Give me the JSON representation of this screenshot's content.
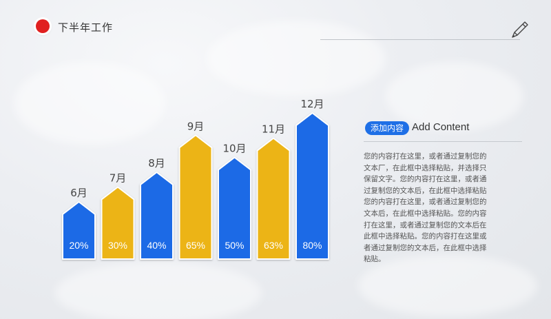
{
  "header": {
    "title": "下半年工作"
  },
  "colors": {
    "blue": "#1a6ae6",
    "yellow": "#ecb416",
    "accent_red": "#e02020"
  },
  "icons": {
    "header_marker": "red-dot-icon",
    "decoration": "pen-icon"
  },
  "chart_data": {
    "type": "bar",
    "categories": [
      "6月",
      "7月",
      "8月",
      "9月",
      "10月",
      "11月",
      "12月"
    ],
    "values": [
      20,
      30,
      40,
      65,
      50,
      63,
      80
    ],
    "value_labels": [
      "20%",
      "30%",
      "40%",
      "65%",
      "50%",
      "63%",
      "80%"
    ],
    "bar_colors": [
      "blue",
      "yellow",
      "blue",
      "yellow",
      "blue",
      "yellow",
      "blue"
    ],
    "unit": "%",
    "title": "",
    "xlabel": "",
    "ylabel": "",
    "ylim": [
      0,
      100
    ],
    "grid": false,
    "legend": "none"
  },
  "content": {
    "tag": "添加内容",
    "heading": "Add Content",
    "body": "您的内容打在这里，或者通过复制您的文本厂，在此框中选择粘贴，并选择只保留文字。您的内容打在这里，或者通过复制您的文本后，在此框中选择粘贴您的内容打在这里，或者通过复制您的文本后，在此框中选择粘贴。您的内容打在这里，或者通过复制您的文本后在此框中选择粘贴。您的内容打在这里或者通过复制您的文本后，在此框中选择粘贴。"
  }
}
